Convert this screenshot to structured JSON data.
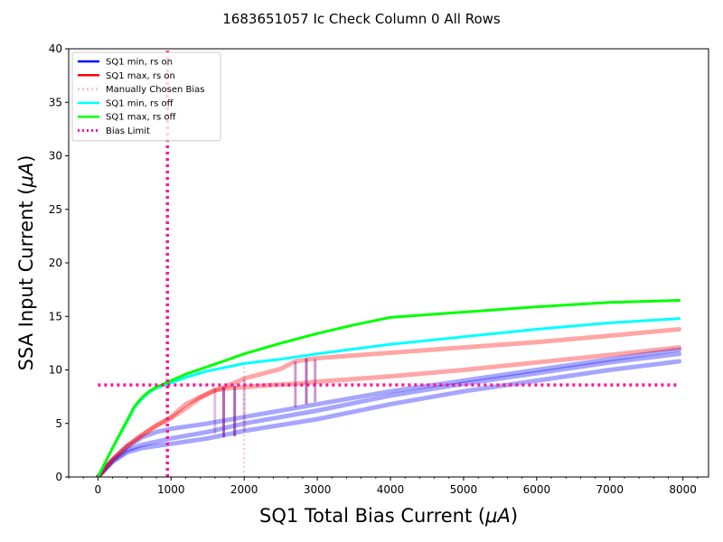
{
  "chart_data": {
    "type": "line",
    "title": "1683651057 Ic Check Column 0 All Rows",
    "xlabel_text": "SQ1 Total Bias Current (",
    "xlabel_unit": "μA",
    "ylabel_text": "SSA Input Current (",
    "ylabel_unit": "μA",
    "xlim": [
      -400,
      8350
    ],
    "ylim": [
      0,
      40
    ],
    "xticks": [
      0,
      1000,
      2000,
      3000,
      4000,
      5000,
      6000,
      7000,
      8000
    ],
    "yticks": [
      0,
      5,
      10,
      15,
      20,
      25,
      30,
      35,
      40
    ],
    "grid": false,
    "legend_placement": "top-left",
    "legend": [
      {
        "label": "SQ1 min, rs on",
        "color": "#0000ff",
        "style": "solid"
      },
      {
        "label": "SQ1 max, rs on",
        "color": "#ff0000",
        "style": "solid"
      },
      {
        "label": "Manually Chosen Bias",
        "color": "#ffc0cb",
        "style": "dotted"
      },
      {
        "label": "SQ1 min, rs off",
        "color": "#00ffff",
        "style": "solid"
      },
      {
        "label": "SQ1 max, rs off",
        "color": "#00ff00",
        "style": "solid"
      },
      {
        "label": "Bias Limit",
        "color": "#ff1493",
        "style": "dotted"
      }
    ],
    "series": [
      {
        "name": "SQ1 min, rs on",
        "color": "#0000ff",
        "opacity": 0.35,
        "x": [
          0,
          200,
          400,
          600,
          800,
          1000,
          1500,
          2000,
          3000,
          4000,
          5000,
          6000,
          7000,
          7950
        ],
        "y": [
          0,
          1.6,
          2.8,
          3.7,
          4.2,
          4.5,
          5.0,
          5.6,
          6.8,
          8.0,
          9.0,
          10.0,
          11.0,
          11.9
        ]
      },
      {
        "name": "SQ1 min, rs on",
        "color": "#0000ff",
        "opacity": 0.35,
        "x": [
          0,
          200,
          400,
          600,
          800,
          1000,
          1500,
          2000,
          3000,
          4000,
          5000,
          6000,
          7000,
          7950
        ],
        "y": [
          0,
          1.4,
          2.3,
          2.7,
          2.9,
          3.1,
          3.6,
          4.3,
          5.4,
          6.8,
          8.0,
          9.0,
          10.0,
          10.8
        ]
      },
      {
        "name": "SQ1 min, rs on",
        "color": "#0000ff",
        "opacity": 0.35,
        "x": [
          0,
          200,
          400,
          600,
          800,
          1000,
          1500,
          2000,
          3000,
          4000,
          5000,
          6000,
          7000,
          7950
        ],
        "y": [
          0,
          1.5,
          2.5,
          3.0,
          3.3,
          3.6,
          4.2,
          5.0,
          6.2,
          7.6,
          8.7,
          9.7,
          10.7,
          11.5
        ]
      },
      {
        "name": "SQ1 max, rs on",
        "color": "#ff0000",
        "opacity": 0.35,
        "x": [
          0,
          200,
          400,
          600,
          800,
          1000,
          1200,
          1400,
          1600,
          1800,
          2000,
          2400,
          2700,
          3000,
          4000,
          5000,
          6000,
          7000,
          7950
        ],
        "y": [
          0,
          1.6,
          2.9,
          3.9,
          4.8,
          5.5,
          6.4,
          7.4,
          8.1,
          8.3,
          8.4,
          8.6,
          8.7,
          8.9,
          9.4,
          10.0,
          10.7,
          11.4,
          12.1
        ]
      },
      {
        "name": "SQ1 max, rs on",
        "color": "#ff0000",
        "opacity": 0.35,
        "x": [
          0,
          200,
          400,
          600,
          800,
          1000,
          1200,
          1500,
          1800,
          2000,
          2500,
          2700,
          3000,
          4000,
          5000,
          6000,
          7000,
          7950
        ],
        "y": [
          0,
          1.6,
          2.9,
          3.9,
          4.8,
          5.6,
          6.8,
          7.8,
          8.6,
          9.2,
          10.1,
          10.8,
          11.1,
          11.6,
          12.1,
          12.6,
          13.2,
          13.8
        ]
      },
      {
        "name": "SQ1 min, rs off",
        "color": "#00ffff",
        "opacity": 1,
        "x": [
          0,
          200,
          400,
          500,
          600,
          700,
          800,
          1000,
          1200,
          1500,
          2000,
          2500,
          3000,
          4000,
          5000,
          6000,
          7000,
          7950
        ],
        "y": [
          0,
          2.7,
          5.2,
          6.5,
          7.3,
          7.9,
          8.3,
          8.8,
          9.3,
          9.9,
          10.6,
          11.0,
          11.5,
          12.4,
          13.1,
          13.8,
          14.4,
          14.8
        ]
      },
      {
        "name": "SQ1 max, rs off",
        "color": "#00ff00",
        "opacity": 1,
        "x": [
          0,
          200,
          400,
          500,
          600,
          700,
          800,
          1000,
          1200,
          1500,
          2000,
          2500,
          3000,
          3500,
          4000,
          5000,
          6000,
          7000,
          7950
        ],
        "y": [
          0,
          2.7,
          5.3,
          6.6,
          7.4,
          8.0,
          8.4,
          9.0,
          9.6,
          10.3,
          11.5,
          12.5,
          13.4,
          14.2,
          14.9,
          15.4,
          15.9,
          16.3,
          16.5
        ]
      }
    ],
    "manual_bias": [
      {
        "x": 2000,
        "y0": 0,
        "y1": 10.7,
        "color": "#ffc0cb"
      }
    ],
    "bias_limit": {
      "x": 950,
      "y": 8.6,
      "xmax": 7950,
      "color": "#ff1493"
    },
    "markers": [
      {
        "x": 1600,
        "y0": 4.0,
        "y1": 8.3,
        "color": "#800080",
        "opacity": 0.25
      },
      {
        "x": 1720,
        "y0": 3.7,
        "y1": 8.4,
        "color": "#800080",
        "opacity": 0.6
      },
      {
        "x": 1870,
        "y0": 3.8,
        "y1": 8.5,
        "color": "#800080",
        "opacity": 0.6
      },
      {
        "x": 2000,
        "y0": 4.3,
        "y1": 9.2,
        "color": "#800080",
        "opacity": 0.25
      },
      {
        "x": 2700,
        "y0": 6.5,
        "y1": 10.8,
        "color": "#800080",
        "opacity": 0.4
      },
      {
        "x": 2850,
        "y0": 6.8,
        "y1": 11.1,
        "color": "#800080",
        "opacity": 0.55
      },
      {
        "x": 2970,
        "y0": 7.0,
        "y1": 11.0,
        "color": "#800080",
        "opacity": 0.4
      }
    ]
  }
}
